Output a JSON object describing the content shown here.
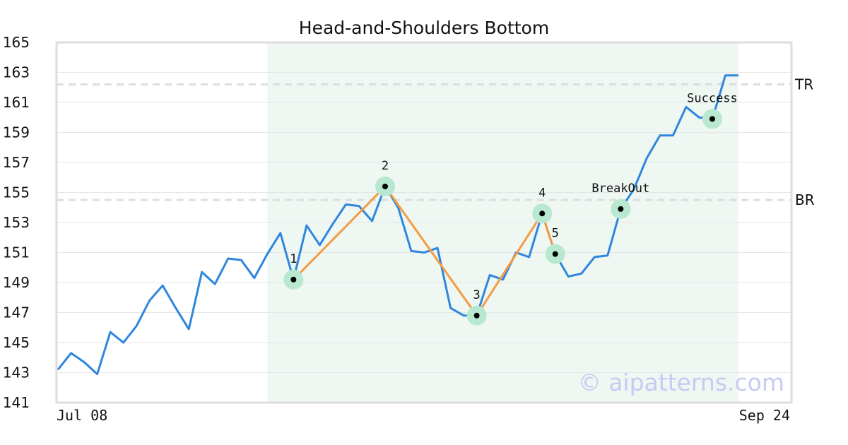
{
  "chart_data": {
    "type": "line",
    "title": "Head-and-Shoulders Bottom",
    "xlabel": "",
    "ylabel": "",
    "ylim": [
      141,
      165
    ],
    "yticks": [
      141,
      143,
      145,
      147,
      149,
      151,
      153,
      155,
      157,
      159,
      161,
      163,
      165
    ],
    "x_tick_labels": [
      {
        "index": 0,
        "label": "Jul 08"
      },
      {
        "index": 54,
        "label": "Sep 24"
      }
    ],
    "grid": true,
    "series": [
      {
        "values": [
          143.2,
          144.3,
          143.7,
          142.9,
          145.7,
          145.0,
          146.1,
          147.8,
          148.8,
          147.3,
          145.9,
          149.7,
          148.9,
          150.6,
          150.5,
          149.3,
          150.9,
          152.3,
          149.2,
          152.8,
          151.5,
          152.9,
          154.2,
          154.1,
          153.1,
          155.4,
          154.0,
          151.1,
          151.0,
          151.3,
          147.3,
          146.8,
          146.8,
          149.5,
          149.2,
          151.0,
          150.7,
          153.6,
          150.9,
          149.4,
          149.6,
          150.7,
          150.8,
          153.9,
          155.2,
          157.3,
          158.8,
          158.8,
          160.7,
          160.0,
          159.9,
          162.8,
          162.8
        ]
      }
    ],
    "pattern_points": [
      {
        "label": "1",
        "index": 18,
        "value": 149.2
      },
      {
        "label": "2",
        "index": 25,
        "value": 155.4
      },
      {
        "label": "3",
        "index": 32,
        "value": 146.8
      },
      {
        "label": "4",
        "index": 37,
        "value": 153.6
      },
      {
        "label": "5",
        "index": 38,
        "value": 150.9
      }
    ],
    "events": [
      {
        "label": "BreakOut",
        "index": 43,
        "value": 153.9
      },
      {
        "label": "Success",
        "index": 50,
        "value": 159.9
      }
    ],
    "levels": [
      {
        "label": "TR",
        "value": 162.2
      },
      {
        "label": "BR",
        "value": 154.5
      }
    ],
    "highlight_range": {
      "start_index": 16,
      "end_index": 52
    },
    "colors": {
      "price_line": "#2e86de",
      "pattern_line": "#f59b42",
      "marker_halo": "#b8e8d0",
      "marker_dot": "#000000",
      "highlight": "#eef7f2",
      "level_line": "#dddddd",
      "grid": "#e6e6e6",
      "frame": "#dddddd",
      "watermark": "#c9c9f4"
    },
    "watermark": "© aipatterns.com"
  }
}
